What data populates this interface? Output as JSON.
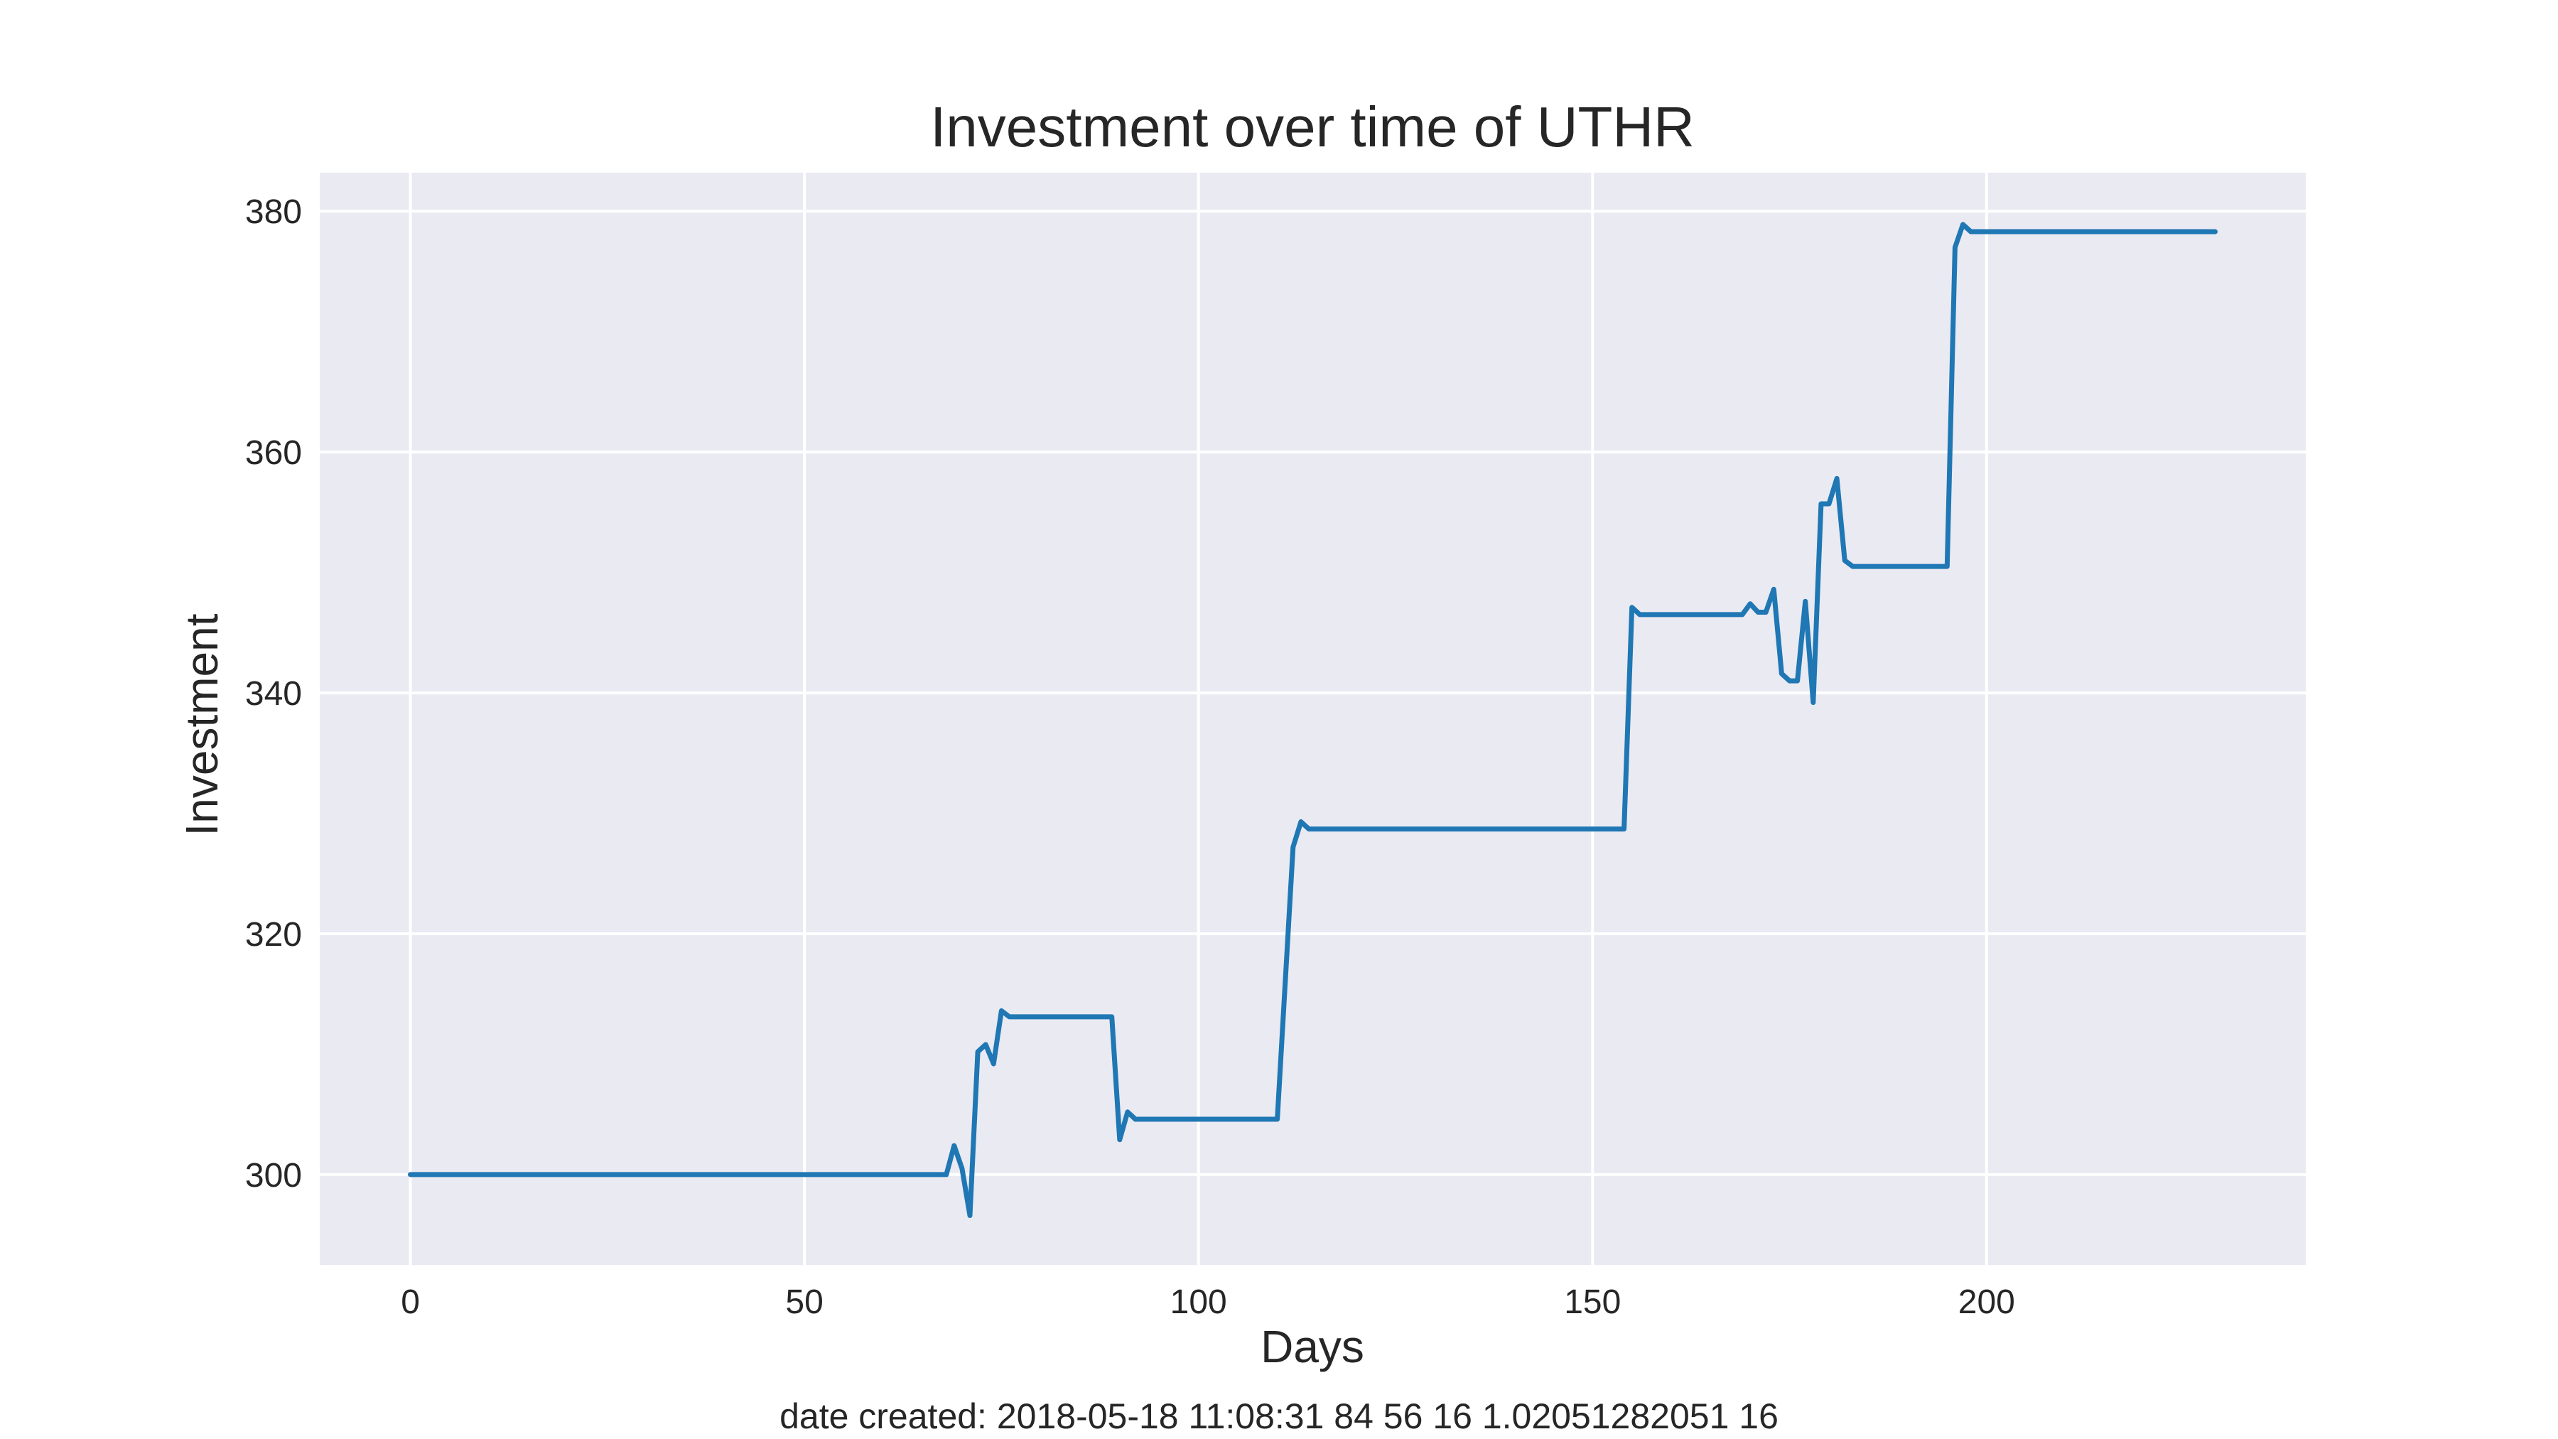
{
  "chart_data": {
    "type": "line",
    "title": "Investment over time of UTHR",
    "xlabel": "Days",
    "ylabel": "Investment",
    "footer": "date created: 2018-05-18 11:08:31 84 56 16 1.02051282051 16",
    "xlim": [
      -11.5,
      240.5
    ],
    "ylim": [
      292.5,
      383.2
    ],
    "x_ticks": [
      0,
      50,
      100,
      150,
      200
    ],
    "x_tick_labels": [
      "0",
      "50",
      "100",
      "150",
      "200"
    ],
    "y_ticks": [
      300,
      320,
      340,
      360,
      380
    ],
    "y_tick_labels": [
      "300",
      "320",
      "340",
      "360",
      "380"
    ],
    "grid": true,
    "colors": {
      "background": "#eaeaf2",
      "grid": "#ffffff",
      "line": "#1f77b4",
      "text": "#262626"
    },
    "series": [
      {
        "x": [
          0,
          68,
          69,
          70,
          71,
          72,
          73,
          74,
          75,
          76,
          89,
          90,
          91,
          92,
          110,
          112,
          113,
          114,
          154,
          155,
          156,
          169,
          170,
          171,
          172,
          173,
          174,
          175,
          176,
          177,
          178,
          179,
          180,
          181,
          182,
          183,
          195,
          196,
          197,
          198,
          229
        ],
        "y": [
          300.0,
          300.0,
          302.4,
          300.5,
          296.6,
          310.2,
          310.8,
          309.2,
          313.6,
          313.1,
          313.1,
          302.9,
          305.2,
          304.6,
          304.6,
          327.2,
          329.3,
          328.7,
          328.7,
          347.1,
          346.5,
          346.5,
          347.4,
          346.7,
          346.7,
          348.6,
          341.6,
          341.0,
          341.0,
          347.6,
          339.2,
          355.7,
          355.7,
          357.8,
          351.0,
          350.5,
          350.5,
          377.0,
          378.9,
          378.3,
          378.3
        ]
      }
    ]
  }
}
